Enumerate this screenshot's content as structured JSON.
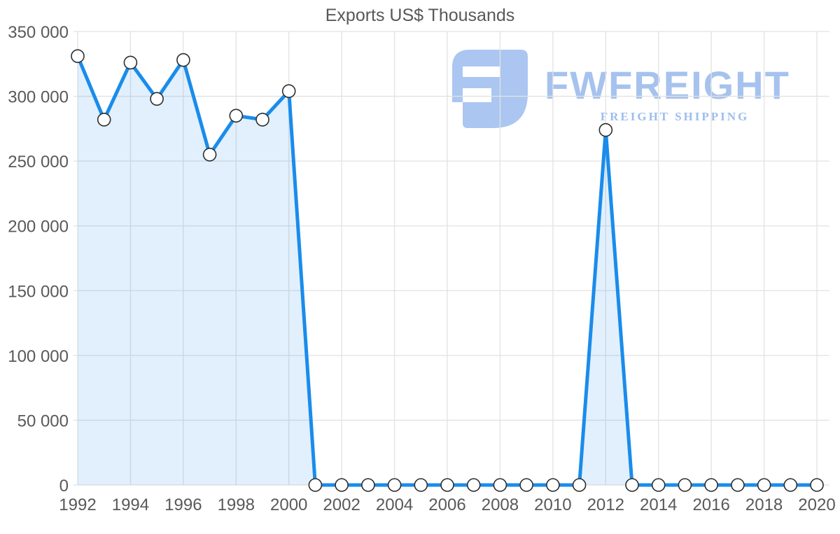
{
  "title": "Exports US$ Thousands",
  "chart_data": {
    "type": "area",
    "title": "Exports US$ Thousands",
    "xlabel": "",
    "ylabel": "",
    "x": [
      1992,
      1993,
      1994,
      1995,
      1996,
      1997,
      1998,
      1999,
      2000,
      2001,
      2002,
      2003,
      2004,
      2005,
      2006,
      2007,
      2008,
      2009,
      2010,
      2011,
      2012,
      2013,
      2014,
      2015,
      2016,
      2017,
      2018,
      2019,
      2020
    ],
    "series": [
      {
        "name": "Exports US$ Thousands",
        "values": [
          331000,
          282000,
          326000,
          298000,
          328000,
          255000,
          285000,
          282000,
          304000,
          0,
          0,
          0,
          0,
          0,
          0,
          0,
          0,
          0,
          0,
          0,
          274000,
          0,
          0,
          0,
          0,
          0,
          0,
          0,
          0
        ]
      }
    ],
    "ylim": [
      0,
      350000
    ],
    "xtick_interval": 2,
    "yticks": [
      {
        "value": 0,
        "label": "0"
      },
      {
        "value": 50000,
        "label": "50 000"
      },
      {
        "value": 100000,
        "label": "100 000"
      },
      {
        "value": 150000,
        "label": "150 000"
      },
      {
        "value": 200000,
        "label": "200 000"
      },
      {
        "value": 250000,
        "label": "250 000"
      },
      {
        "value": 300000,
        "label": "300 000"
      },
      {
        "value": 350000,
        "label": "350 000"
      }
    ],
    "grid": true,
    "legend": "none",
    "colors": {
      "line": "#1a8ceb",
      "fill": "rgba(26,140,235,0.13)",
      "marker_fill": "#ffffff",
      "marker_stroke": "#2e2e2e",
      "grid": "#e2e2e2",
      "text": "#58595b"
    }
  },
  "watermark": {
    "brand": "FWFREIGHT",
    "tagline": "FREIGHT SHIPPING",
    "icon_color": "#abc6f1",
    "brand_color": "#a6c2ee",
    "tagline_color": "#9cbeeb"
  }
}
